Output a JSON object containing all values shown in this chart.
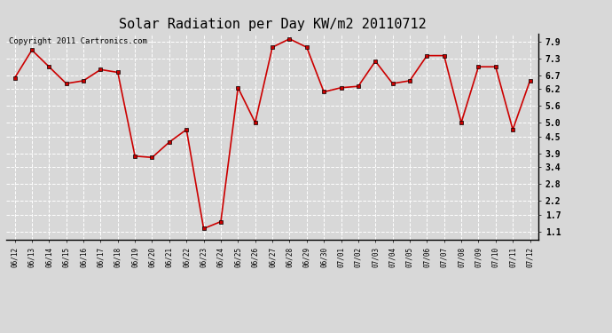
{
  "title": "Solar Radiation per Day KW/m2 20110712",
  "copyright": "Copyright 2011 Cartronics.com",
  "labels": [
    "06/12",
    "06/13",
    "06/14",
    "06/15",
    "06/16",
    "06/17",
    "06/18",
    "06/19",
    "06/20",
    "06/21",
    "06/22",
    "06/23",
    "06/24",
    "06/25",
    "06/26",
    "06/27",
    "06/28",
    "06/29",
    "06/30",
    "07/01",
    "07/02",
    "07/03",
    "07/04",
    "07/05",
    "07/06",
    "07/07",
    "07/08",
    "07/09",
    "07/10",
    "07/11",
    "07/12"
  ],
  "values": [
    6.6,
    7.6,
    7.0,
    6.4,
    6.5,
    6.9,
    6.8,
    3.8,
    3.75,
    4.3,
    4.75,
    1.2,
    1.45,
    6.25,
    5.0,
    7.7,
    8.0,
    7.7,
    6.1,
    6.25,
    6.3,
    7.2,
    6.4,
    6.5,
    7.4,
    7.4,
    5.0,
    7.0,
    7.0,
    4.75,
    6.5
  ],
  "line_color": "#cc0000",
  "marker": "s",
  "marker_color": "#cc0000",
  "marker_size": 2.5,
  "bg_color": "#d8d8d8",
  "grid_color": "#ffffff",
  "yticks": [
    1.1,
    1.7,
    2.2,
    2.8,
    3.4,
    3.9,
    4.5,
    5.0,
    5.6,
    6.2,
    6.7,
    7.3,
    7.9
  ],
  "ylim": [
    0.8,
    8.2
  ],
  "title_fontsize": 11,
  "copyright_fontsize": 6.5
}
